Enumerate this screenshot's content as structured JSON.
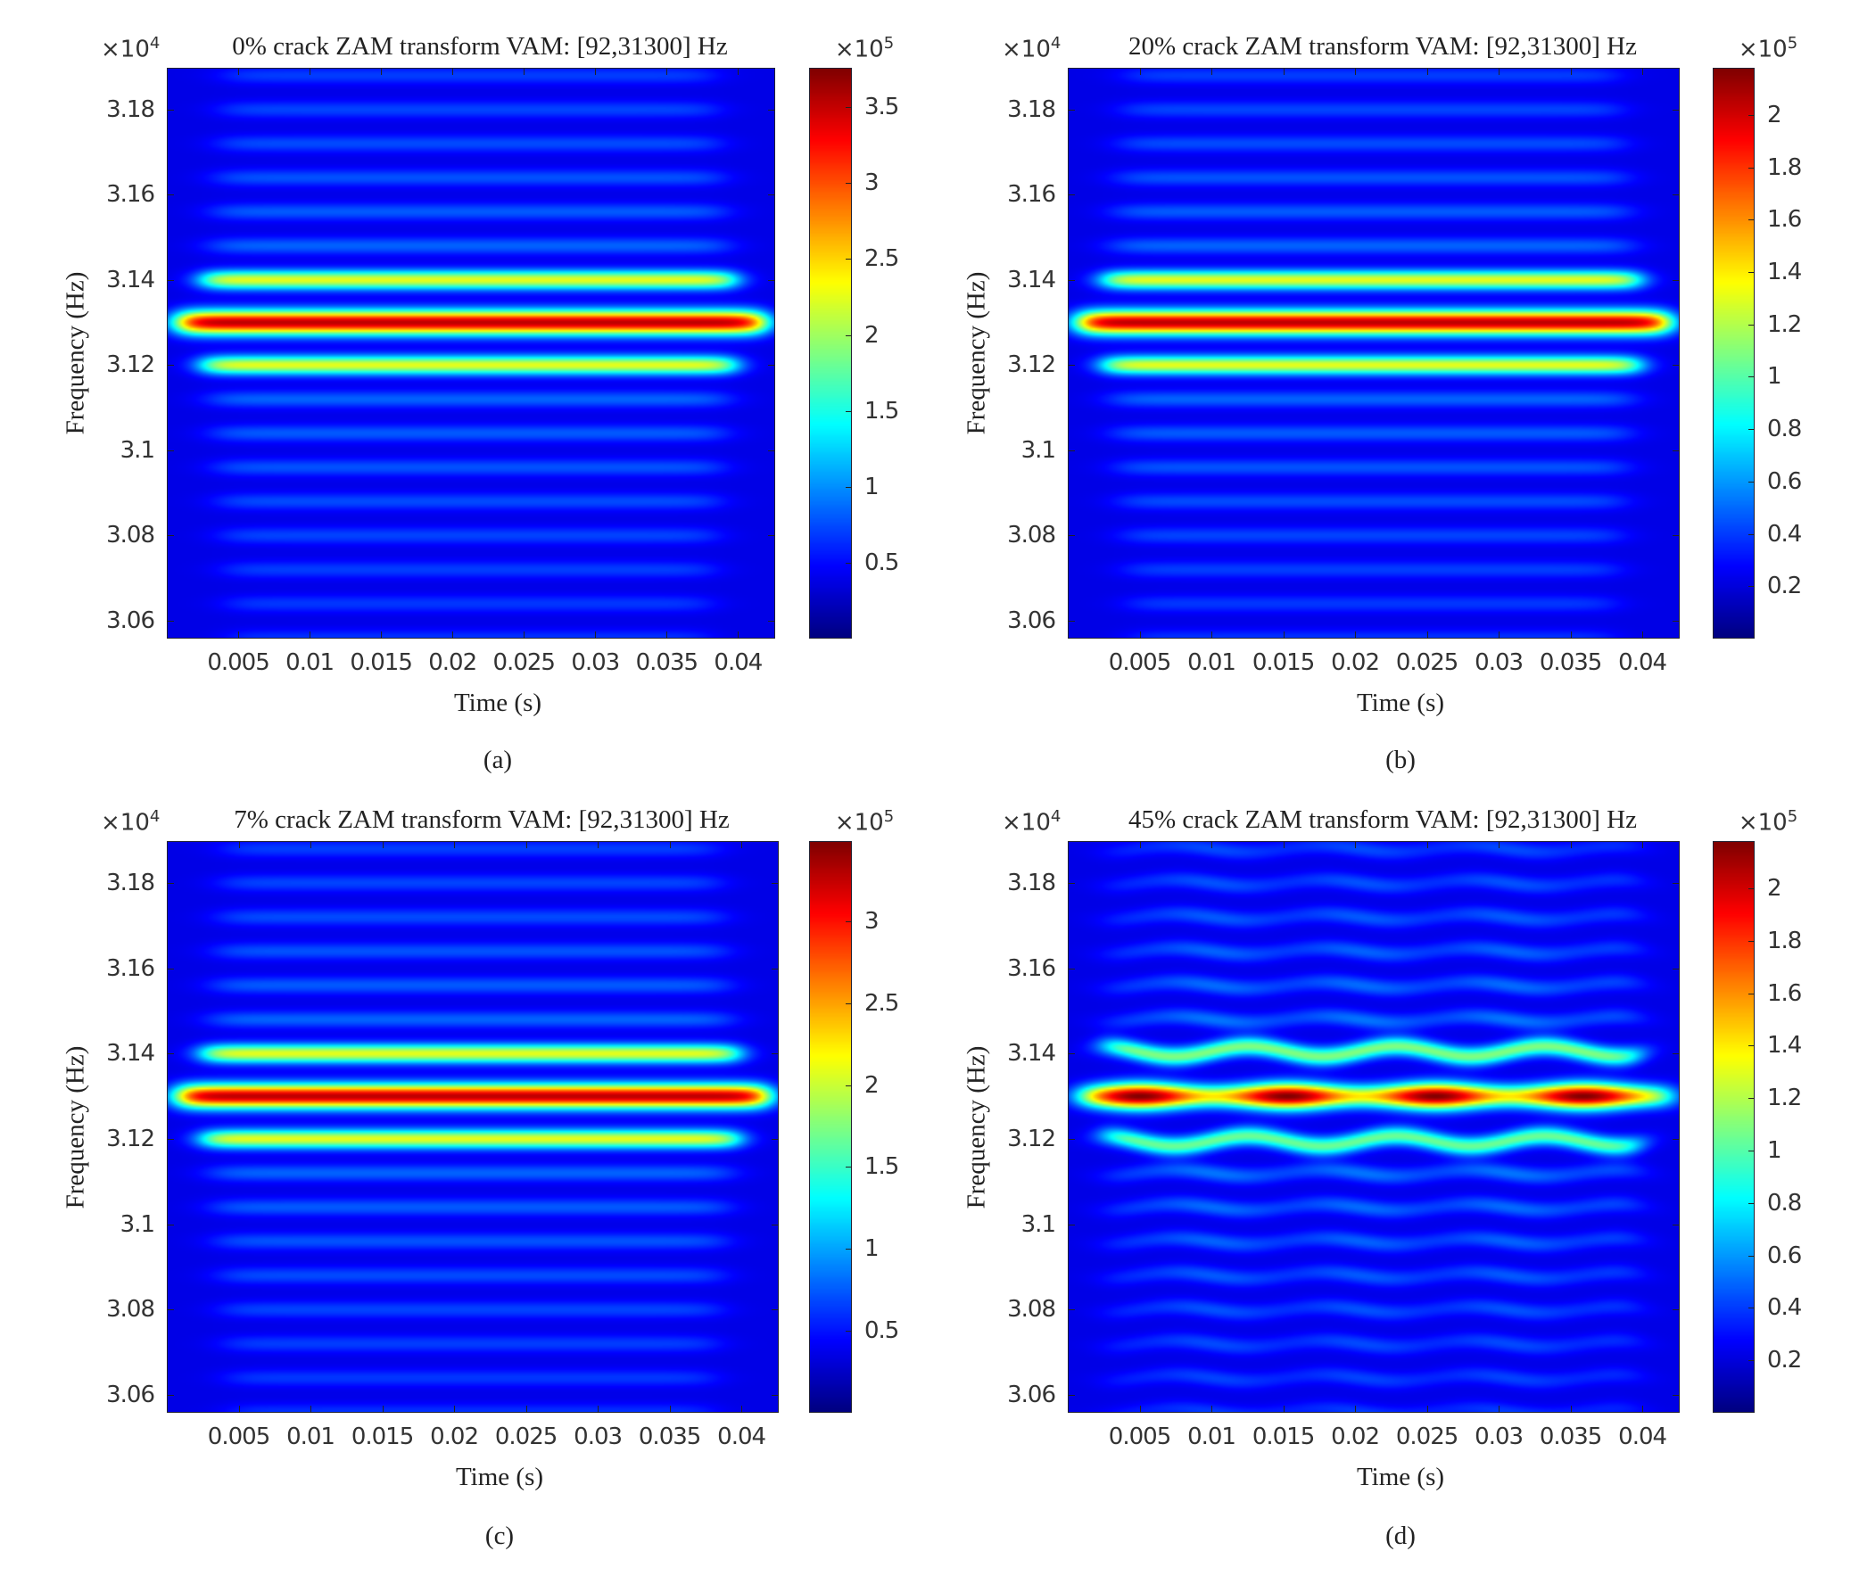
{
  "chart_data": [
    {
      "type": "heatmap",
      "label": "(a)",
      "title": "0% crack ZAM transform VAM: [92,31300] Hz",
      "xlabel": "Time (s)",
      "ylabel": "Frequency (Hz)",
      "y_multiplier": "×10",
      "y_exponent": "4",
      "c_multiplier": "×10",
      "c_exponent": "5",
      "xlim": [
        0,
        0.0426
      ],
      "ylim": [
        3.0558,
        3.1898
      ],
      "clim": [
        0,
        3.76
      ],
      "xticks": [
        "0.005",
        "0.01",
        "0.015",
        "0.02",
        "0.025",
        "0.03",
        "0.035",
        "0.04"
      ],
      "xtick_values": [
        0.005,
        0.01,
        0.015,
        0.02,
        0.025,
        0.03,
        0.035,
        0.04
      ],
      "yticks": [
        "3.06",
        "3.08",
        "3.1",
        "3.12",
        "3.14",
        "3.16",
        "3.18"
      ],
      "ytick_values": [
        3.06,
        3.08,
        3.1,
        3.12,
        3.14,
        3.16,
        3.18
      ],
      "cticks": [
        "0.5",
        "1",
        "1.5",
        "2",
        "2.5",
        "3",
        "3.5"
      ],
      "ctick_values": [
        0.5,
        1,
        1.5,
        2,
        2.5,
        3,
        3.5
      ],
      "colormap": "jet",
      "peak_frequency_hz": 31300,
      "modulated": false
    },
    {
      "type": "heatmap",
      "label": "(b)",
      "title": "20% crack ZAM transform VAM: [92,31300] Hz",
      "xlabel": "Time (s)",
      "ylabel": "Frequency (Hz)",
      "y_multiplier": "×10",
      "y_exponent": "4",
      "c_multiplier": "×10",
      "c_exponent": "5",
      "xlim": [
        0,
        0.0426
      ],
      "ylim": [
        3.0558,
        3.1898
      ],
      "clim": [
        0,
        2.18
      ],
      "xticks": [
        "0.005",
        "0.01",
        "0.015",
        "0.02",
        "0.025",
        "0.03",
        "0.035",
        "0.04"
      ],
      "xtick_values": [
        0.005,
        0.01,
        0.015,
        0.02,
        0.025,
        0.03,
        0.035,
        0.04
      ],
      "yticks": [
        "3.06",
        "3.08",
        "3.1",
        "3.12",
        "3.14",
        "3.16",
        "3.18"
      ],
      "ytick_values": [
        3.06,
        3.08,
        3.1,
        3.12,
        3.14,
        3.16,
        3.18
      ],
      "cticks": [
        "0.2",
        "0.4",
        "0.6",
        "0.8",
        "1",
        "1.2",
        "1.4",
        "1.6",
        "1.8",
        "2"
      ],
      "ctick_values": [
        0.2,
        0.4,
        0.6,
        0.8,
        1,
        1.2,
        1.4,
        1.6,
        1.8,
        2
      ],
      "colormap": "jet",
      "peak_frequency_hz": 31300,
      "modulated": false
    },
    {
      "type": "heatmap",
      "label": "(c)",
      "title": "7% crack ZAM transform VAM: [92,31300] Hz",
      "xlabel": "Time (s)",
      "ylabel": "Frequency (Hz)",
      "y_multiplier": "×10",
      "y_exponent": "4",
      "c_multiplier": "×10",
      "c_exponent": "5",
      "xlim": [
        0,
        0.0426
      ],
      "ylim": [
        3.0558,
        3.1898
      ],
      "clim": [
        0,
        3.49
      ],
      "xticks": [
        "0.005",
        "0.01",
        "0.015",
        "0.02",
        "0.025",
        "0.03",
        "0.035",
        "0.04"
      ],
      "xtick_values": [
        0.005,
        0.01,
        0.015,
        0.02,
        0.025,
        0.03,
        0.035,
        0.04
      ],
      "yticks": [
        "3.06",
        "3.08",
        "3.1",
        "3.12",
        "3.14",
        "3.16",
        "3.18"
      ],
      "ytick_values": [
        3.06,
        3.08,
        3.1,
        3.12,
        3.14,
        3.16,
        3.18
      ],
      "cticks": [
        "0.5",
        "1",
        "1.5",
        "2",
        "2.5",
        "3"
      ],
      "ctick_values": [
        0.5,
        1,
        1.5,
        2,
        2.5,
        3
      ],
      "colormap": "jet",
      "peak_frequency_hz": 31300,
      "modulated": false
    },
    {
      "type": "heatmap",
      "label": "(d)",
      "title": "45% crack ZAM transform VAM: [92,31300] Hz",
      "xlabel": "Time (s)",
      "ylabel": "Frequency (Hz)",
      "y_multiplier": "×10",
      "y_exponent": "4",
      "c_multiplier": "×10",
      "c_exponent": "5",
      "xlim": [
        0,
        0.0426
      ],
      "ylim": [
        3.0558,
        3.1898
      ],
      "clim": [
        0,
        2.18
      ],
      "xticks": [
        "0.005",
        "0.01",
        "0.015",
        "0.02",
        "0.025",
        "0.03",
        "0.035",
        "0.04"
      ],
      "xtick_values": [
        0.005,
        0.01,
        0.015,
        0.02,
        0.025,
        0.03,
        0.035,
        0.04
      ],
      "yticks": [
        "3.06",
        "3.08",
        "3.1",
        "3.12",
        "3.14",
        "3.16",
        "3.18"
      ],
      "ytick_values": [
        3.06,
        3.08,
        3.1,
        3.12,
        3.14,
        3.16,
        3.18
      ],
      "cticks": [
        "0.2",
        "0.4",
        "0.6",
        "0.8",
        "1",
        "1.2",
        "1.4",
        "1.6",
        "1.8",
        "2"
      ],
      "ctick_values": [
        0.2,
        0.4,
        0.6,
        0.8,
        1,
        1.2,
        1.4,
        1.6,
        1.8,
        2
      ],
      "colormap": "jet",
      "peak_frequency_hz": 31300,
      "modulated": true,
      "modulation_peaks_s": [
        0.005,
        0.015,
        0.025,
        0.036
      ]
    }
  ]
}
